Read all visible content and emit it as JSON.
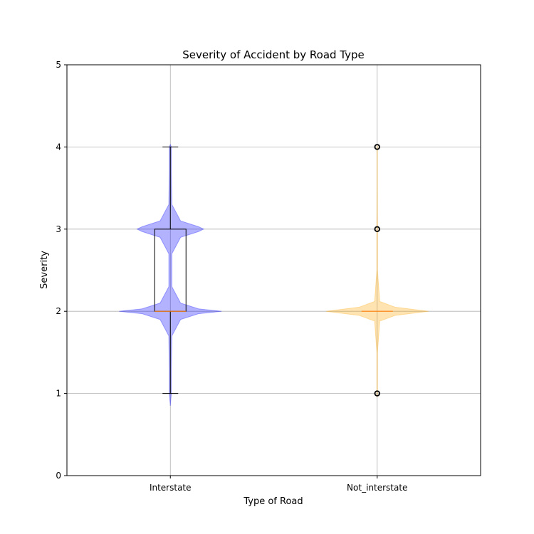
{
  "chart_data": {
    "type": "violin",
    "title": "Severity of Accident by Road Type",
    "xlabel": "Type of Road",
    "ylabel": "Severity",
    "ylim": [
      0,
      5
    ],
    "yticks": [
      0,
      1,
      2,
      3,
      4,
      5
    ],
    "grid": true,
    "categories": [
      "Interstate",
      "Not_interstate"
    ],
    "violins": [
      {
        "category": "Interstate",
        "color": "#0000ff",
        "density": [
          [
            0.85,
            0
          ],
          [
            1.0,
            0.02
          ],
          [
            1.3,
            0.02
          ],
          [
            1.7,
            0.03
          ],
          [
            1.9,
            0.2
          ],
          [
            1.97,
            0.55
          ],
          [
            2.0,
            1.0
          ],
          [
            2.03,
            0.55
          ],
          [
            2.1,
            0.2
          ],
          [
            2.3,
            0.03
          ],
          [
            2.7,
            0.03
          ],
          [
            2.9,
            0.2
          ],
          [
            2.97,
            0.55
          ],
          [
            3.0,
            0.65
          ],
          [
            3.03,
            0.55
          ],
          [
            3.1,
            0.2
          ],
          [
            3.3,
            0.03
          ],
          [
            3.7,
            0.02
          ],
          [
            4.0,
            0.02
          ],
          [
            4.03,
            0
          ]
        ],
        "box": {
          "q1": 2,
          "median": 2,
          "q3": 3,
          "whisker_low": 1,
          "whisker_high": 4
        },
        "outliers": []
      },
      {
        "category": "Not_interstate",
        "color": "#ffa500",
        "density": [
          [
            0.95,
            0
          ],
          [
            1.0,
            0.005
          ],
          [
            1.5,
            0.006
          ],
          [
            1.88,
            0.05
          ],
          [
            1.95,
            0.35
          ],
          [
            2.0,
            1.0
          ],
          [
            2.05,
            0.35
          ],
          [
            2.12,
            0.05
          ],
          [
            2.5,
            0.006
          ],
          [
            3.0,
            0.006
          ],
          [
            3.5,
            0.004
          ],
          [
            4.0,
            0.004
          ],
          [
            4.03,
            0
          ]
        ],
        "box": {
          "q1": 2,
          "median": 2,
          "q3": 2,
          "whisker_low": 2,
          "whisker_high": 2
        },
        "outliers": [
          1,
          3,
          4
        ]
      }
    ]
  }
}
